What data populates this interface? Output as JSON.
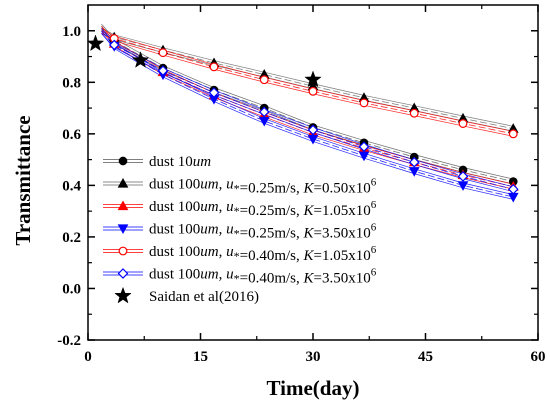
{
  "chart_data": {
    "type": "line",
    "xlabel": "Time(day)",
    "ylabel": "Transmittance",
    "xlim": [
      0,
      60
    ],
    "ylim": [
      -0.2,
      1.1
    ],
    "x_ticks": [
      0,
      15,
      30,
      45,
      60
    ],
    "x_tick_labels": [
      "0",
      "15",
      "30",
      "45",
      "60"
    ],
    "y_ticks": [
      -0.2,
      0.0,
      0.2,
      0.4,
      0.6,
      0.8,
      1.0
    ],
    "y_tick_labels": [
      "-0.2",
      "0.0",
      "0.2",
      "0.4",
      "0.6",
      "0.8",
      "1.0"
    ],
    "grid": false,
    "legend_position": "bottom-left",
    "x": [
      3.5,
      10,
      16.8,
      23.5,
      30,
      36.8,
      43.5,
      50,
      56.7
    ],
    "series": [
      {
        "name": "dust 10um",
        "legend": [
          {
            "t": "dust 10"
          },
          {
            "t": "um",
            "i": true
          }
        ],
        "marker": "circle-filled",
        "color": "#000000",
        "line_color": "#555555",
        "values": [
          0.96,
          0.855,
          0.77,
          0.7,
          0.625,
          0.565,
          0.51,
          0.46,
          0.415
        ]
      },
      {
        "name": "dust 100um, u*=0.25m/s, K=0.50x10^6",
        "legend": [
          {
            "t": "dust 100"
          },
          {
            "t": "um",
            "i": true
          },
          {
            "t": ", "
          },
          {
            "t": "u",
            "i": true
          },
          {
            "t": "*",
            "sub": true
          },
          {
            "t": "=0.25m/s, "
          },
          {
            "t": "K",
            "i": true
          },
          {
            "t": "=0.50x10"
          },
          {
            "t": "6",
            "sup": true
          }
        ],
        "marker": "triangle-up-filled",
        "color": "#000000",
        "line_color": "#666666",
        "values": [
          0.975,
          0.925,
          0.875,
          0.83,
          0.785,
          0.74,
          0.7,
          0.66,
          0.62
        ]
      },
      {
        "name": "dust 100um, u*=0.25m/s, K=1.05x10^6",
        "legend": [
          {
            "t": "dust 100"
          },
          {
            "t": "um",
            "i": true
          },
          {
            "t": ", "
          },
          {
            "t": "u",
            "i": true
          },
          {
            "t": "*",
            "sub": true
          },
          {
            "t": "=0.25m/s, "
          },
          {
            "t": "K",
            "i": true
          },
          {
            "t": "=1.05x10"
          },
          {
            "t": "6",
            "sup": true
          }
        ],
        "marker": "triangle-up-filled",
        "color": "#ff0000",
        "line_color": "#ff0000",
        "values": [
          0.95,
          0.84,
          0.75,
          0.675,
          0.605,
          0.545,
          0.49,
          0.44,
          0.395
        ]
      },
      {
        "name": "dust 100um, u*=0.25m/s, K=3.50x10^6",
        "legend": [
          {
            "t": "dust 100"
          },
          {
            "t": "um",
            "i": true
          },
          {
            "t": ", "
          },
          {
            "t": "u",
            "i": true
          },
          {
            "t": "*",
            "sub": true
          },
          {
            "t": "=0.25m/s, "
          },
          {
            "t": "K",
            "i": true
          },
          {
            "t": "=3.50x10"
          },
          {
            "t": "6",
            "sup": true
          }
        ],
        "marker": "triangle-down-filled",
        "color": "#0000ff",
        "line_color": "#0000ff",
        "values": [
          0.94,
          0.83,
          0.735,
          0.65,
          0.58,
          0.515,
          0.455,
          0.4,
          0.355
        ]
      },
      {
        "name": "dust 100um, u*=0.40m/s, K=1.05x10^6",
        "legend": [
          {
            "t": "dust 100"
          },
          {
            "t": "um",
            "i": true
          },
          {
            "t": ", "
          },
          {
            "t": "u",
            "i": true
          },
          {
            "t": "*",
            "sub": true
          },
          {
            "t": "=0.40m/s, "
          },
          {
            "t": "K",
            "i": true
          },
          {
            "t": "=1.05x10"
          },
          {
            "t": "6",
            "sup": true
          }
        ],
        "marker": "circle-open",
        "color": "#ff0000",
        "line_color": "#ff0000",
        "values": [
          0.97,
          0.915,
          0.86,
          0.81,
          0.765,
          0.72,
          0.68,
          0.64,
          0.6
        ]
      },
      {
        "name": "dust 100um, u*=0.40m/s, K=3.50x10^6",
        "legend": [
          {
            "t": "dust 100"
          },
          {
            "t": "um",
            "i": true
          },
          {
            "t": ", "
          },
          {
            "t": "u",
            "i": true
          },
          {
            "t": "*",
            "sub": true
          },
          {
            "t": "=0.40m/s, "
          },
          {
            "t": "K",
            "i": true
          },
          {
            "t": "=3.50x10"
          },
          {
            "t": "6",
            "sup": true
          }
        ],
        "marker": "diamond-open",
        "color": "#0000ff",
        "line_color": "#0000ff",
        "values": [
          0.945,
          0.845,
          0.76,
          0.685,
          0.615,
          0.55,
          0.49,
          0.435,
          0.385
        ]
      }
    ],
    "reference_points": {
      "name": "Saidan et al(2016)",
      "legend": [
        {
          "t": "Saidan et al(2016)"
        }
      ],
      "marker": "star-filled",
      "color": "#000000",
      "points": [
        {
          "x": 1,
          "y": 0.95
        },
        {
          "x": 7,
          "y": 0.885
        },
        {
          "x": 30,
          "y": 0.81
        }
      ]
    }
  }
}
